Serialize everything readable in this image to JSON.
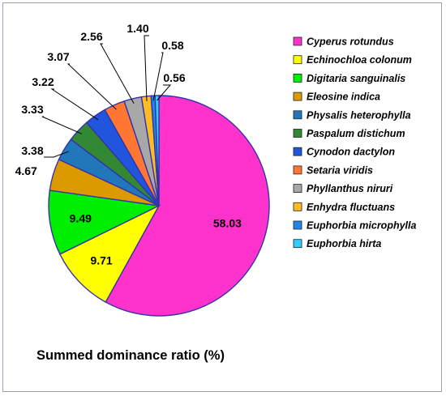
{
  "chart_data": {
    "type": "pie",
    "title": "Summed dominance ratio (%)",
    "legend_position": "right",
    "slices": [
      {
        "name": "Cyperus rotundus",
        "value": 58.03,
        "label": "58.03",
        "color": "#ff33cc"
      },
      {
        "name": "Echinochloa colonum",
        "value": 9.71,
        "label": "9.71",
        "color": "#ffff00"
      },
      {
        "name": "Digitaria sanguinalis",
        "value": 9.49,
        "label": "9.49",
        "color": "#00ee00"
      },
      {
        "name": "Eleosine indica",
        "value": 4.67,
        "label": "4.67",
        "color": "#dd9900"
      },
      {
        "name": "Physalis heterophylla",
        "value": 3.38,
        "label": "3.38",
        "color": "#2277bb"
      },
      {
        "name": "Paspalum distichum",
        "value": 3.33,
        "label": "3.33",
        "color": "#338833"
      },
      {
        "name": "Cynodon dactylon",
        "value": 3.22,
        "label": "3.22",
        "color": "#2255dd"
      },
      {
        "name": "Setaria viridis",
        "value": 3.07,
        "label": "3.07",
        "color": "#ff7733"
      },
      {
        "name": "Phyllanthus niruri",
        "value": 2.56,
        "label": "2.56",
        "color": "#a8a8a8"
      },
      {
        "name": "Enhydra fluctuans",
        "value": 1.4,
        "label": "1.40",
        "color": "#ffbb22"
      },
      {
        "name": "Euphorbia microphylla",
        "value": 0.58,
        "label": "0.58",
        "color": "#1e88e5"
      },
      {
        "name": "Euphorbia hirta",
        "value": 0.56,
        "label": "0.56",
        "color": "#33ccff"
      }
    ]
  }
}
